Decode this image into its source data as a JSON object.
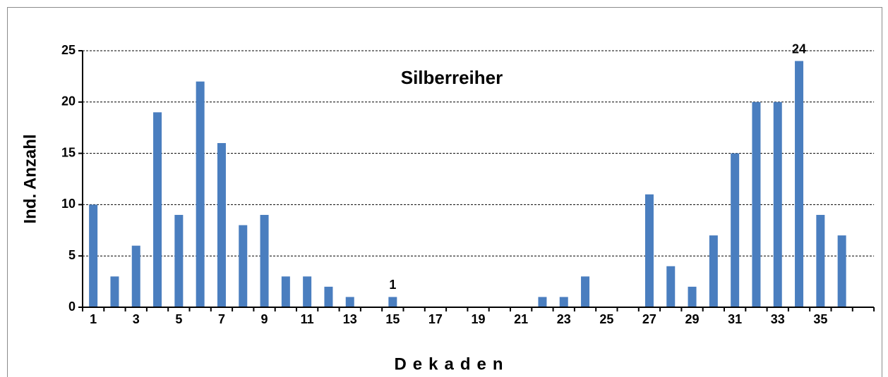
{
  "chart_data": {
    "type": "bar",
    "title": "Silberreiher",
    "x_label": "Dekaden",
    "y_label": "Ind. Anzahl",
    "categories": [
      1,
      null,
      3,
      null,
      5,
      null,
      7,
      null,
      9,
      null,
      11,
      null,
      13,
      null,
      15,
      null,
      17,
      null,
      19,
      null,
      21,
      null,
      23,
      null,
      25,
      null,
      27,
      null,
      29,
      null,
      31,
      null,
      33,
      null,
      35,
      null
    ],
    "values": [
      10,
      3,
      6,
      19,
      9,
      22,
      16,
      8,
      9,
      3,
      3,
      2,
      1,
      0,
      1,
      0,
      0,
      0,
      0,
      0,
      0,
      1,
      1,
      3,
      0,
      0,
      11,
      4,
      2,
      7,
      15,
      20,
      20,
      24,
      9,
      7
    ],
    "value_labels": [
      null,
      null,
      null,
      null,
      null,
      null,
      null,
      null,
      null,
      null,
      null,
      null,
      null,
      null,
      "1",
      null,
      null,
      null,
      null,
      null,
      null,
      null,
      null,
      null,
      null,
      null,
      null,
      null,
      null,
      null,
      null,
      null,
      null,
      "24",
      null,
      null
    ],
    "color": "#4a7ebf",
    "ylim": [
      0,
      25
    ],
    "yticks": [
      0,
      5,
      10,
      15,
      20,
      25
    ],
    "grid": true
  }
}
